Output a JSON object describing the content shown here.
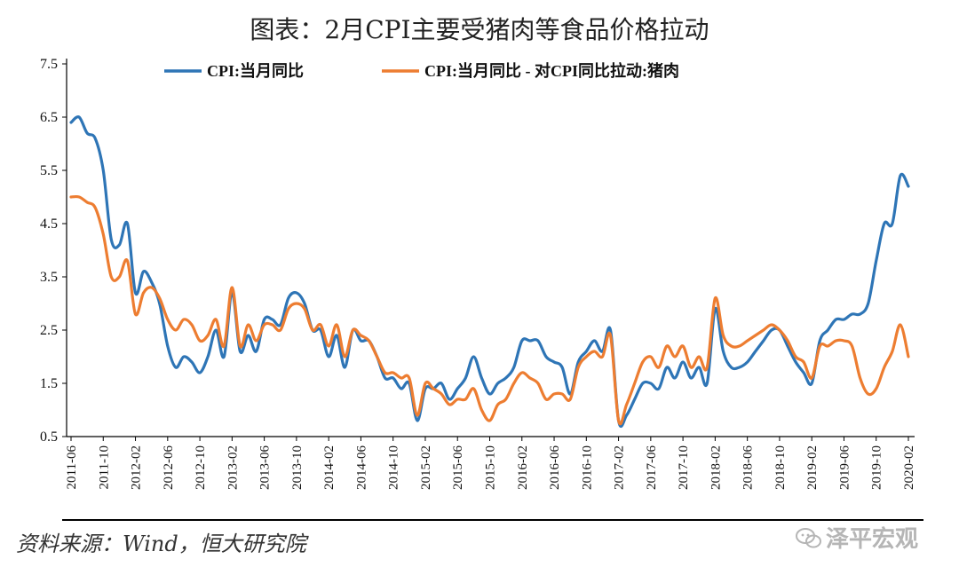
{
  "title": "图表：2月CPI主要受猪肉等食品价格拉动",
  "source": "资料来源：Wind，恒大研究院",
  "watermark": "泽平宏观",
  "chart_data": {
    "type": "line",
    "ylim": [
      0.5,
      7.5
    ],
    "yticks": [
      "0.5",
      "1.5",
      "2.5",
      "3.5",
      "4.5",
      "5.5",
      "6.5",
      "7.5"
    ],
    "x_start": "2011-06",
    "x_end": "2020-02",
    "x_tick_labels": [
      "2011-06",
      "2011-10",
      "2012-02",
      "2012-06",
      "2012-10",
      "2013-02",
      "2013-06",
      "2013-10",
      "2014-02",
      "2014-06",
      "2014-10",
      "2015-02",
      "2015-06",
      "2015-10",
      "2016-02",
      "2016-06",
      "2016-10",
      "2017-02",
      "2017-06",
      "2017-10",
      "2018-02",
      "2018-06",
      "2018-10",
      "2019-02",
      "2019-06",
      "2019-10",
      "2020-02"
    ],
    "legend_position": "top",
    "series": [
      {
        "name": "CPI:当月同比",
        "color": "#2E75B6",
        "values": [
          6.4,
          6.5,
          6.2,
          6.1,
          5.5,
          4.2,
          4.1,
          4.5,
          3.2,
          3.6,
          3.4,
          3.0,
          2.2,
          1.8,
          2.0,
          1.9,
          1.7,
          2.0,
          2.5,
          2.0,
          3.2,
          2.1,
          2.4,
          2.1,
          2.7,
          2.7,
          2.6,
          3.1,
          3.2,
          3.0,
          2.5,
          2.5,
          2.0,
          2.4,
          1.8,
          2.5,
          2.3,
          2.3,
          2.0,
          1.6,
          1.6,
          1.4,
          1.5,
          0.8,
          1.4,
          1.4,
          1.5,
          1.2,
          1.4,
          1.6,
          2.0,
          1.6,
          1.3,
          1.5,
          1.6,
          1.8,
          2.3,
          2.3,
          2.3,
          2.0,
          1.9,
          1.8,
          1.3,
          1.9,
          2.1,
          2.3,
          2.1,
          2.5,
          0.8,
          0.9,
          1.2,
          1.5,
          1.5,
          1.4,
          1.8,
          1.6,
          1.9,
          1.6,
          1.8,
          1.5,
          2.9,
          2.1,
          1.8,
          1.8,
          1.9,
          2.1,
          2.3,
          2.5,
          2.5,
          2.2,
          1.9,
          1.7,
          1.5,
          2.3,
          2.5,
          2.7,
          2.7,
          2.8,
          2.8,
          3.0,
          3.8,
          4.5,
          4.5,
          5.4,
          5.2
        ]
      },
      {
        "name": "CPI:当月同比 - 对CPI同比拉动:猪肉",
        "color": "#ED7D31",
        "values": [
          5.0,
          5.0,
          4.9,
          4.8,
          4.3,
          3.5,
          3.5,
          3.8,
          2.8,
          3.2,
          3.3,
          3.1,
          2.7,
          2.5,
          2.7,
          2.6,
          2.3,
          2.4,
          2.7,
          2.2,
          3.3,
          2.2,
          2.6,
          2.3,
          2.6,
          2.6,
          2.5,
          2.9,
          3.0,
          2.9,
          2.5,
          2.6,
          2.2,
          2.6,
          2.0,
          2.5,
          2.4,
          2.3,
          2.0,
          1.7,
          1.7,
          1.6,
          1.6,
          0.9,
          1.5,
          1.4,
          1.3,
          1.1,
          1.2,
          1.2,
          1.4,
          1.0,
          0.8,
          1.1,
          1.2,
          1.5,
          1.7,
          1.6,
          1.5,
          1.2,
          1.3,
          1.3,
          1.2,
          1.8,
          2.0,
          2.1,
          2.0,
          2.4,
          0.8,
          1.1,
          1.5,
          1.9,
          2.0,
          1.8,
          2.2,
          2.0,
          2.2,
          1.8,
          2.0,
          1.8,
          3.1,
          2.4,
          2.2,
          2.2,
          2.3,
          2.4,
          2.5,
          2.6,
          2.5,
          2.3,
          2.0,
          1.9,
          1.6,
          2.2,
          2.2,
          2.3,
          2.3,
          2.2,
          1.6,
          1.3,
          1.4,
          1.8,
          2.1,
          2.6,
          2.0
        ]
      }
    ]
  }
}
